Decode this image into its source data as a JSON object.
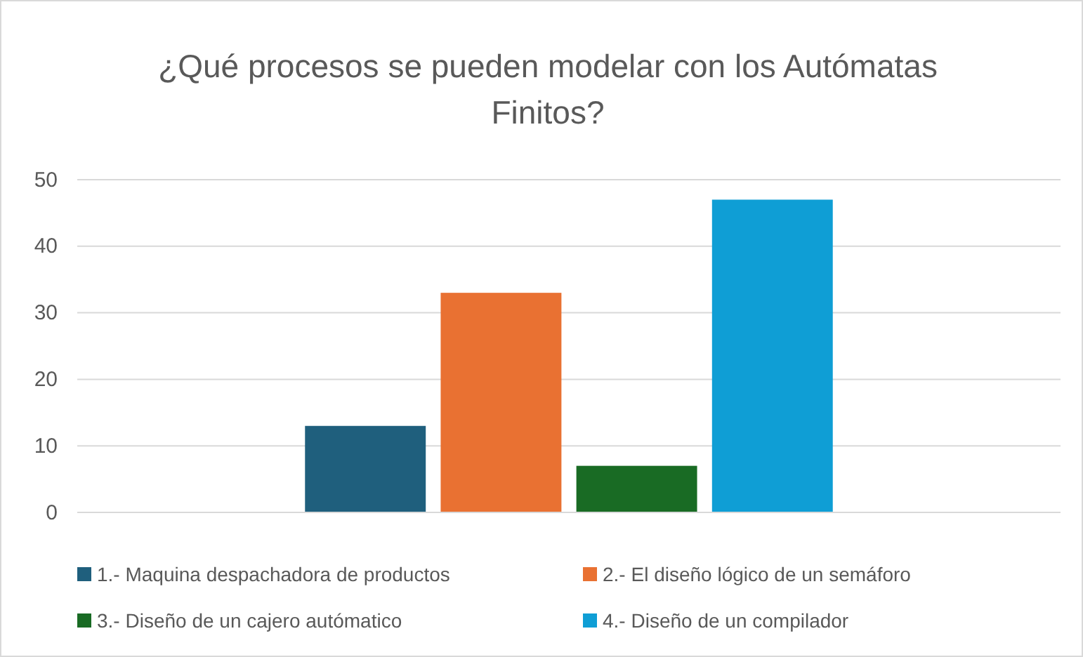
{
  "chart_data": {
    "type": "bar",
    "title": "¿Qué procesos se pueden modelar con los Autómatas Finitos?",
    "categories": [
      null
    ],
    "series": [
      {
        "name": "1.- Maquina despachadora de productos",
        "color": "#1f5f7d",
        "values": [
          13
        ]
      },
      {
        "name": "2.- El diseño lógico de un semáforo",
        "color": "#e97132",
        "values": [
          33
        ]
      },
      {
        "name": "3.- Diseño de un cajero autómatico",
        "color": "#196b24",
        "values": [
          7
        ]
      },
      {
        "name": "4.- Diseño de un compilador",
        "color": "#0f9ed5",
        "values": [
          47
        ]
      }
    ],
    "ylim": [
      0,
      50
    ],
    "yticks": [
      0,
      10,
      20,
      30,
      40,
      50
    ],
    "grid": "y",
    "legend": "bottom"
  }
}
